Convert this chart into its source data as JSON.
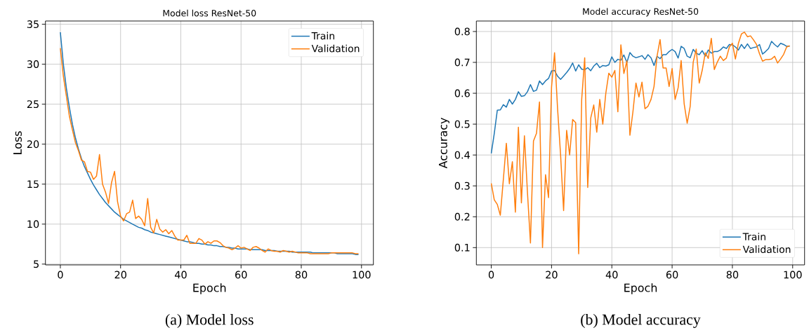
{
  "chart_data": [
    {
      "type": "line",
      "title": "Model loss ResNet-50",
      "xlabel": "Epoch",
      "ylabel": "Loss",
      "xlim": [
        -4.95,
        103.95
      ],
      "ylim": [
        4.9,
        35.4
      ],
      "xticks": [
        0,
        20,
        40,
        60,
        80,
        100
      ],
      "yticks": [
        5,
        10,
        15,
        20,
        25,
        30,
        35
      ],
      "grid": true,
      "legend": "top right",
      "annotations": [
        "(a) Model loss"
      ],
      "x": [
        0,
        1,
        2,
        3,
        4,
        5,
        6,
        7,
        8,
        9,
        10,
        11,
        12,
        13,
        14,
        15,
        16,
        17,
        18,
        19,
        20,
        21,
        22,
        23,
        24,
        25,
        26,
        27,
        28,
        29,
        30,
        31,
        32,
        33,
        34,
        35,
        36,
        37,
        38,
        39,
        40,
        41,
        42,
        43,
        44,
        45,
        46,
        47,
        48,
        49,
        50,
        51,
        52,
        53,
        54,
        55,
        56,
        57,
        58,
        59,
        60,
        61,
        62,
        63,
        64,
        65,
        66,
        67,
        68,
        69,
        70,
        71,
        72,
        73,
        74,
        75,
        76,
        77,
        78,
        79,
        80,
        81,
        82,
        83,
        84,
        85,
        86,
        87,
        88,
        89,
        90,
        91,
        92,
        93,
        94,
        95,
        96,
        97,
        98,
        99
      ],
      "series": [
        {
          "name": "Train",
          "color": "#1f77b4",
          "values": [
            34,
            30,
            27,
            24.6,
            22.5,
            20.8,
            19.4,
            18.2,
            17.2,
            16.4,
            15.6,
            14.9,
            14.3,
            13.7,
            13.2,
            12.7,
            12.3,
            11.9,
            11.5,
            11.2,
            10.9,
            10.6,
            10.4,
            10.2,
            10.0,
            9.8,
            9.6,
            9.5,
            9.3,
            9.2,
            9.0,
            8.9,
            8.8,
            8.7,
            8.6,
            8.5,
            8.4,
            8.3,
            8.2,
            8.1,
            8.0,
            7.9,
            7.8,
            7.8,
            7.7,
            7.6,
            7.6,
            7.5,
            7.5,
            7.4,
            7.4,
            7.3,
            7.3,
            7.2,
            7.2,
            7.1,
            7.1,
            7.0,
            7.0,
            6.9,
            6.9,
            6.9,
            6.9,
            6.8,
            6.8,
            6.8,
            6.8,
            6.8,
            6.7,
            6.7,
            6.7,
            6.7,
            6.6,
            6.6,
            6.6,
            6.6,
            6.6,
            6.5,
            6.5,
            6.5,
            6.5,
            6.5,
            6.5,
            6.5,
            6.4,
            6.4,
            6.4,
            6.4,
            6.4,
            6.4,
            6.4,
            6.4,
            6.3,
            6.3,
            6.3,
            6.3,
            6.3,
            6.3,
            6.2,
            6.2
          ]
        },
        {
          "name": "Validation",
          "color": "#ff7f0e",
          "values": [
            32,
            28.5,
            26,
            23.5,
            21.8,
            20.2,
            19.2,
            18.0,
            17.8,
            16.6,
            16.5,
            15.6,
            16.0,
            18.7,
            15.0,
            14.0,
            12.6,
            15.2,
            16.6,
            12.8,
            11.0,
            10.4,
            11.3,
            11.5,
            13.0,
            10.7,
            11.0,
            10.6,
            9.8,
            13.2,
            9.6,
            8.9,
            10.6,
            9.4,
            9.0,
            9.3,
            8.8,
            9.2,
            8.5,
            8.0,
            8.0,
            8.0,
            8.6,
            7.6,
            7.6,
            7.6,
            8.2,
            8.0,
            7.5,
            7.8,
            7.6,
            7.9,
            7.9,
            7.7,
            7.3,
            7.1,
            7.0,
            6.8,
            7.0,
            7.3,
            7.0,
            7.1,
            6.9,
            6.7,
            7.1,
            7.2,
            7.0,
            6.7,
            6.5,
            6.9,
            6.7,
            6.6,
            6.6,
            6.5,
            6.7,
            6.6,
            6.5,
            6.6,
            6.5,
            6.4,
            6.4,
            6.4,
            6.4,
            6.3,
            6.3,
            6.3,
            6.3,
            6.3,
            6.3,
            6.3,
            6.4,
            6.4,
            6.4,
            6.4,
            6.4,
            6.4,
            6.4,
            6.4,
            6.3,
            6.3
          ]
        }
      ]
    },
    {
      "type": "line",
      "title": "Model accuracy ResNet-50",
      "xlabel": "Epoch",
      "ylabel": "Accuracy",
      "xlim": [
        -4.95,
        103.95
      ],
      "ylim": [
        0.044,
        0.834
      ],
      "xticks": [
        0,
        20,
        40,
        60,
        80,
        100
      ],
      "yticks": [
        0.1,
        0.2,
        0.3,
        0.4,
        0.5,
        0.6,
        0.7,
        0.8
      ],
      "grid": true,
      "legend": "bottom right",
      "annotations": [
        "(b) Model accuracy"
      ],
      "x": [
        0,
        1,
        2,
        3,
        4,
        5,
        6,
        7,
        8,
        9,
        10,
        11,
        12,
        13,
        14,
        15,
        16,
        17,
        18,
        19,
        20,
        21,
        22,
        23,
        24,
        25,
        26,
        27,
        28,
        29,
        30,
        31,
        32,
        33,
        34,
        35,
        36,
        37,
        38,
        39,
        40,
        41,
        42,
        43,
        44,
        45,
        46,
        47,
        48,
        49,
        50,
        51,
        52,
        53,
        54,
        55,
        56,
        57,
        58,
        59,
        60,
        61,
        62,
        63,
        64,
        65,
        66,
        67,
        68,
        69,
        70,
        71,
        72,
        73,
        74,
        75,
        76,
        77,
        78,
        79,
        80,
        81,
        82,
        83,
        84,
        85,
        86,
        87,
        88,
        89,
        90,
        91,
        92,
        93,
        94,
        95,
        96,
        97,
        98,
        99
      ],
      "series": [
        {
          "name": "Train",
          "color": "#1f77b4",
          "values": [
            0.405,
            0.47,
            0.545,
            0.546,
            0.563,
            0.555,
            0.58,
            0.565,
            0.58,
            0.605,
            0.59,
            0.592,
            0.605,
            0.628,
            0.606,
            0.61,
            0.64,
            0.628,
            0.64,
            0.648,
            0.672,
            0.674,
            0.655,
            0.645,
            0.656,
            0.667,
            0.68,
            0.698,
            0.672,
            0.692,
            0.678,
            0.676,
            0.683,
            0.673,
            0.688,
            0.697,
            0.683,
            0.69,
            0.688,
            0.692,
            0.718,
            0.7,
            0.71,
            0.707,
            0.724,
            0.7,
            0.732,
            0.72,
            0.715,
            0.718,
            0.722,
            0.71,
            0.725,
            0.715,
            0.69,
            0.72,
            0.712,
            0.725,
            0.725,
            0.735,
            0.742,
            0.735,
            0.714,
            0.752,
            0.745,
            0.72,
            0.715,
            0.742,
            0.73,
            0.725,
            0.738,
            0.72,
            0.74,
            0.73,
            0.735,
            0.735,
            0.74,
            0.75,
            0.745,
            0.758,
            0.757,
            0.75,
            0.74,
            0.758,
            0.745,
            0.76,
            0.745,
            0.748,
            0.75,
            0.758,
            0.727,
            0.735,
            0.745,
            0.768,
            0.758,
            0.75,
            0.762,
            0.758,
            0.752,
            0.752
          ]
        },
        {
          "name": "Validation",
          "color": "#ff7f0e",
          "values": [
            0.308,
            0.255,
            0.24,
            0.205,
            0.32,
            0.438,
            0.307,
            0.378,
            0.215,
            0.49,
            0.245,
            0.462,
            0.28,
            0.115,
            0.445,
            0.47,
            0.572,
            0.1,
            0.336,
            0.262,
            0.62,
            0.731,
            0.55,
            0.4,
            0.22,
            0.48,
            0.4,
            0.515,
            0.505,
            0.08,
            0.58,
            0.715,
            0.295,
            0.52,
            0.562,
            0.474,
            0.58,
            0.5,
            0.6,
            0.665,
            0.652,
            0.674,
            0.54,
            0.757,
            0.664,
            0.705,
            0.464,
            0.54,
            0.633,
            0.588,
            0.636,
            0.55,
            0.558,
            0.58,
            0.622,
            0.72,
            0.774,
            0.682,
            0.682,
            0.622,
            0.68,
            0.58,
            0.618,
            0.706,
            0.566,
            0.503,
            0.558,
            0.701,
            0.743,
            0.633,
            0.675,
            0.731,
            0.713,
            0.778,
            0.677,
            0.701,
            0.72,
            0.706,
            0.714,
            0.75,
            0.762,
            0.711,
            0.762,
            0.792,
            0.798,
            0.783,
            0.786,
            0.773,
            0.758,
            0.728,
            0.704,
            0.709,
            0.709,
            0.711,
            0.72,
            0.698,
            0.711,
            0.726,
            0.75,
            0.754
          ]
        }
      ]
    }
  ]
}
